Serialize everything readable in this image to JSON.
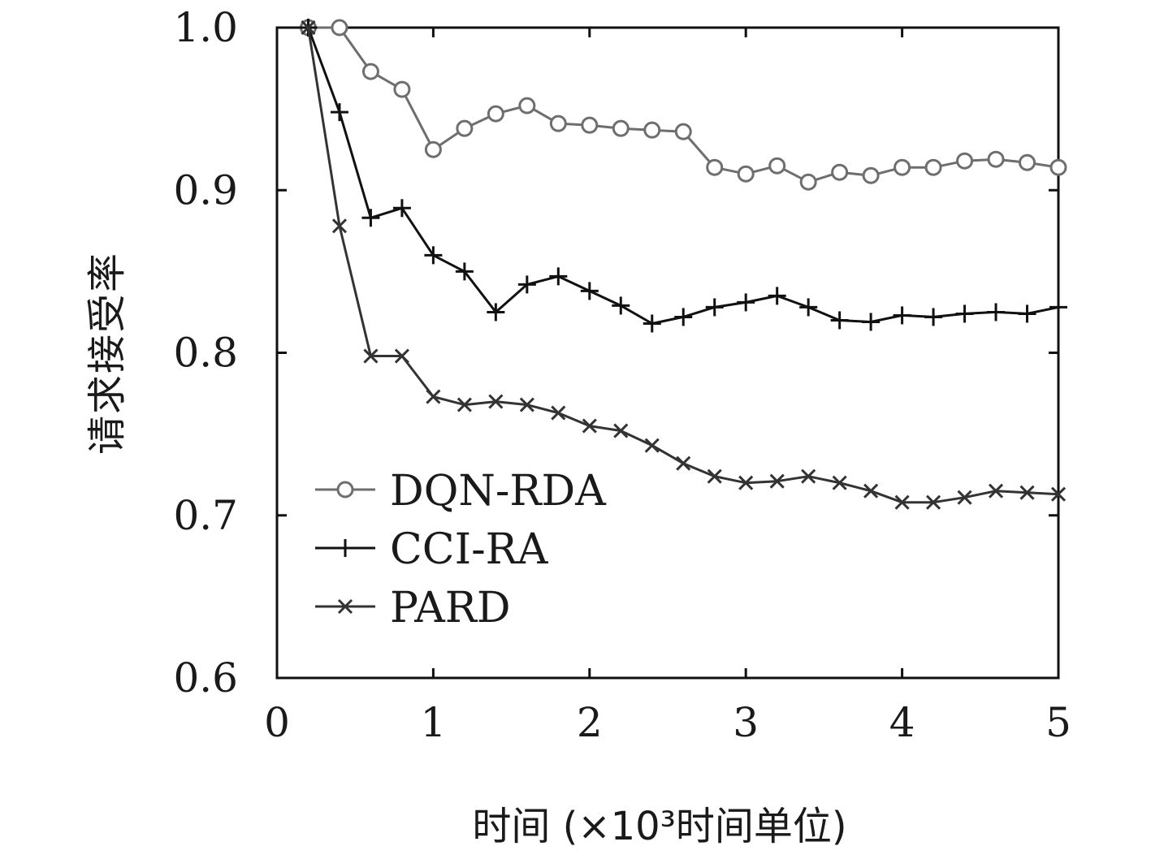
{
  "chart_data": {
    "type": "line",
    "xlabel": "时间 (×10³时间单位)",
    "ylabel": "请求接受率",
    "xlim": [
      0,
      5
    ],
    "ylim": [
      0.6,
      1.0
    ],
    "x_ticks": [
      "0",
      "1",
      "2",
      "3",
      "4",
      "5"
    ],
    "y_ticks": [
      "0.6",
      "0.7",
      "0.8",
      "0.9",
      "1.0"
    ],
    "grid": false,
    "legend_position": "lower-left",
    "x": [
      0.2,
      0.4,
      0.6,
      0.8,
      1.0,
      1.2,
      1.4,
      1.6,
      1.8,
      2.0,
      2.2,
      2.4,
      2.6,
      2.8,
      3.0,
      3.2,
      3.4,
      3.6,
      3.8,
      4.0,
      4.2,
      4.4,
      4.6,
      4.8,
      5.0
    ],
    "series": [
      {
        "name": "DQN-RDA",
        "marker": "circle",
        "color": "#6e6e6e",
        "values": [
          1.0,
          1.0,
          0.973,
          0.962,
          0.925,
          0.938,
          0.947,
          0.952,
          0.941,
          0.94,
          0.938,
          0.937,
          0.936,
          0.914,
          0.91,
          0.915,
          0.905,
          0.911,
          0.909,
          0.914,
          0.914,
          0.918,
          0.919,
          0.917,
          0.914
        ]
      },
      {
        "name": "CCI-RA",
        "marker": "plus",
        "color": "#111111",
        "values": [
          1.0,
          0.948,
          0.883,
          0.889,
          0.86,
          0.85,
          0.825,
          0.842,
          0.847,
          0.838,
          0.829,
          0.818,
          0.822,
          0.828,
          0.831,
          0.835,
          0.828,
          0.82,
          0.819,
          0.823,
          0.822,
          0.824,
          0.825,
          0.824,
          0.828
        ]
      },
      {
        "name": "PARD",
        "marker": "x",
        "color": "#333333",
        "values": [
          1.0,
          0.878,
          0.798,
          0.798,
          0.773,
          0.768,
          0.77,
          0.768,
          0.763,
          0.755,
          0.752,
          0.743,
          0.732,
          0.724,
          0.72,
          0.721,
          0.724,
          0.72,
          0.715,
          0.708,
          0.708,
          0.711,
          0.715,
          0.714,
          0.713
        ]
      }
    ]
  }
}
